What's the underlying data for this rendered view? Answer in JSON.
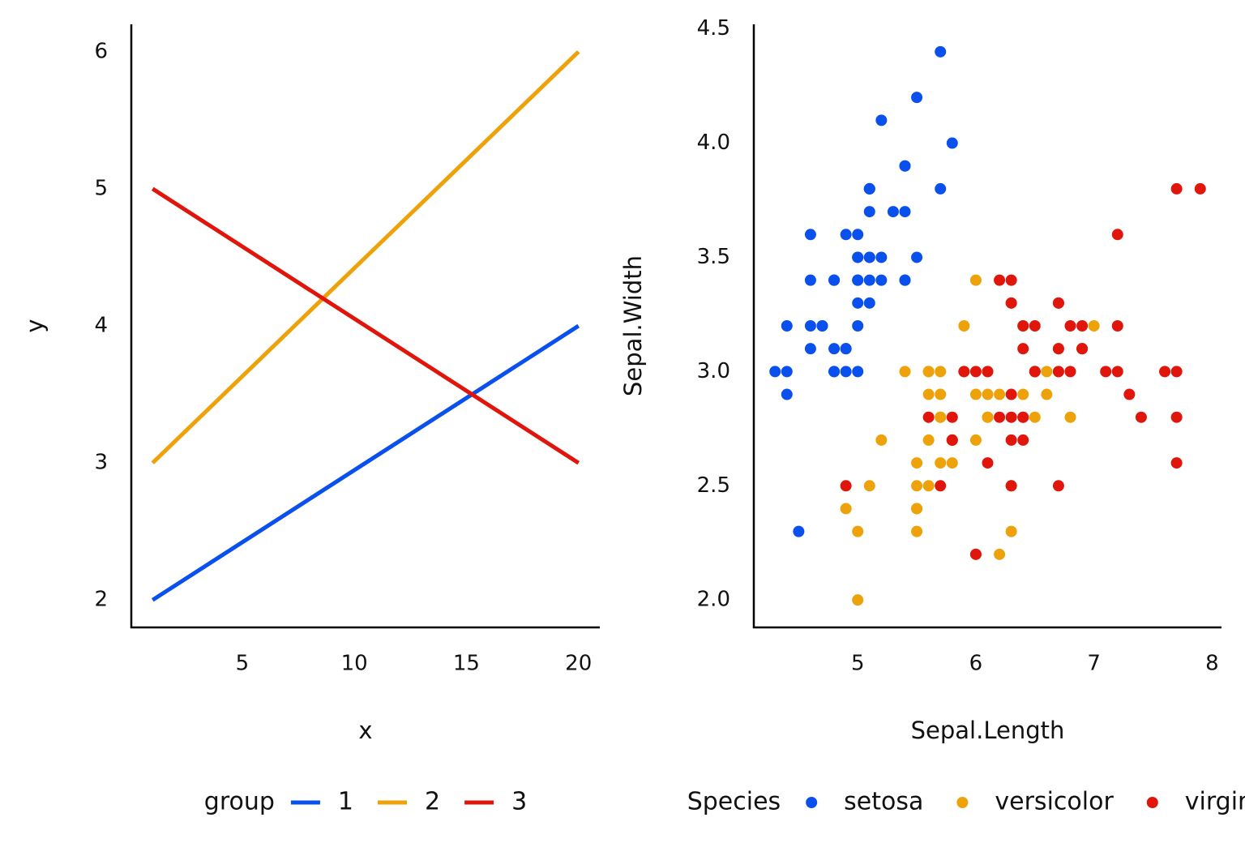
{
  "chart_data": [
    {
      "type": "line",
      "xlabel": "x",
      "ylabel": "y",
      "x": [
        1,
        20
      ],
      "series": [
        {
          "name": "1",
          "color": "#0a50ec",
          "values": [
            2,
            4
          ]
        },
        {
          "name": "2",
          "color": "#eea20a",
          "values": [
            3,
            6
          ]
        },
        {
          "name": "3",
          "color": "#e0160c",
          "values": [
            5,
            3
          ]
        }
      ],
      "xlim": [
        0.05,
        20.95
      ],
      "xticks": [
        5,
        10,
        15,
        20
      ],
      "ylim": [
        1.8,
        6.2
      ],
      "yticks": [
        2,
        3,
        4,
        5,
        6
      ],
      "grid": false,
      "legend_title": "group",
      "legend": "bottom"
    },
    {
      "type": "scatter",
      "xlabel": "Sepal.Length",
      "ylabel": "Sepal.Width",
      "series": [
        {
          "name": "setosa",
          "color": "#0a50ec",
          "x": [
            5.1,
            4.9,
            4.7,
            4.6,
            5.0,
            5.4,
            4.6,
            5.0,
            4.4,
            4.9,
            5.4,
            4.8,
            4.8,
            4.3,
            5.8,
            5.7,
            5.4,
            5.1,
            5.7,
            5.1,
            5.4,
            5.1,
            4.6,
            5.1,
            4.8,
            5.0,
            5.0,
            5.2,
            5.2,
            4.7,
            4.8,
            5.4,
            5.2,
            5.5,
            4.9,
            5.0,
            5.5,
            4.9,
            4.4,
            5.1,
            5.0,
            4.5,
            4.4,
            5.0,
            5.1,
            4.8,
            5.1,
            4.6,
            5.3,
            5.0
          ],
          "values": [
            3.5,
            3.0,
            3.2,
            3.1,
            3.6,
            3.9,
            3.4,
            3.4,
            2.9,
            3.1,
            3.7,
            3.4,
            3.0,
            3.0,
            4.0,
            4.4,
            3.9,
            3.5,
            3.8,
            3.8,
            3.4,
            3.7,
            3.6,
            3.3,
            3.4,
            3.0,
            3.4,
            3.5,
            3.4,
            3.2,
            3.1,
            3.4,
            4.1,
            4.2,
            3.1,
            3.2,
            3.5,
            3.6,
            3.0,
            3.4,
            3.5,
            2.3,
            3.2,
            3.5,
            3.8,
            3.0,
            3.8,
            3.2,
            3.7,
            3.3
          ]
        },
        {
          "name": "versicolor",
          "color": "#eea20a",
          "x": [
            7.0,
            6.4,
            6.9,
            5.5,
            6.5,
            5.7,
            6.3,
            4.9,
            6.6,
            5.2,
            5.0,
            5.9,
            6.0,
            6.1,
            5.6,
            6.7,
            5.6,
            5.8,
            6.2,
            5.6,
            5.9,
            6.1,
            6.3,
            6.1,
            6.4,
            6.6,
            6.8,
            6.7,
            6.0,
            5.7,
            5.5,
            5.5,
            5.8,
            6.0,
            5.4,
            6.0,
            6.7,
            6.3,
            5.6,
            5.5,
            5.5,
            6.1,
            5.8,
            5.0,
            5.6,
            5.7,
            5.7,
            6.2,
            5.1,
            5.7
          ],
          "values": [
            3.2,
            3.2,
            3.1,
            2.3,
            2.8,
            2.8,
            3.3,
            2.4,
            2.9,
            2.7,
            2.0,
            3.0,
            2.2,
            2.9,
            2.9,
            3.1,
            3.0,
            2.7,
            2.2,
            2.5,
            3.2,
            2.8,
            2.5,
            2.8,
            2.9,
            3.0,
            2.8,
            3.0,
            2.9,
            2.6,
            2.4,
            2.4,
            2.7,
            2.7,
            3.0,
            3.4,
            3.1,
            2.3,
            3.0,
            2.5,
            2.6,
            3.0,
            2.6,
            2.3,
            2.7,
            3.0,
            2.9,
            2.9,
            2.5,
            2.8
          ]
        },
        {
          "name": "virginica",
          "color": "#e0160c",
          "x": [
            6.3,
            5.8,
            7.1,
            6.3,
            6.5,
            7.6,
            4.9,
            7.3,
            6.7,
            7.2,
            6.5,
            6.4,
            6.8,
            5.7,
            5.8,
            6.4,
            6.5,
            7.7,
            7.7,
            6.0,
            6.9,
            5.6,
            7.7,
            6.3,
            6.7,
            7.2,
            6.2,
            6.1,
            6.4,
            7.2,
            7.4,
            7.9,
            6.4,
            6.3,
            6.1,
            7.7,
            6.3,
            6.4,
            6.0,
            6.9,
            6.7,
            6.9,
            5.8,
            6.8,
            6.7,
            6.7,
            6.3,
            6.5,
            6.2,
            5.9
          ],
          "values": [
            3.3,
            2.7,
            3.0,
            2.9,
            3.0,
            3.0,
            2.5,
            2.9,
            2.5,
            3.6,
            3.2,
            2.7,
            3.0,
            2.5,
            2.8,
            3.2,
            3.0,
            3.8,
            2.6,
            2.2,
            3.2,
            2.8,
            2.8,
            2.7,
            3.3,
            3.2,
            2.8,
            3.0,
            2.8,
            3.0,
            2.8,
            3.8,
            2.8,
            2.8,
            2.6,
            3.0,
            3.4,
            3.1,
            3.0,
            3.1,
            3.1,
            3.1,
            2.7,
            3.2,
            3.3,
            3.0,
            2.5,
            3.0,
            3.4,
            3.0
          ]
        }
      ],
      "xlim": [
        4.12,
        8.08
      ],
      "xticks": [
        5,
        6,
        7,
        8
      ],
      "ylim": [
        1.88,
        4.52
      ],
      "yticks": [
        {
          "value": 2,
          "label": "2.0"
        },
        {
          "value": 2.5,
          "label": "2.5"
        },
        {
          "value": 3,
          "label": "3.0"
        },
        {
          "value": 3.5,
          "label": "3.5"
        },
        {
          "value": 4,
          "label": "4.0"
        },
        {
          "value": 4.5,
          "label": "4.5"
        }
      ],
      "grid": false,
      "legend_title": "Species",
      "legend": "bottom"
    }
  ]
}
